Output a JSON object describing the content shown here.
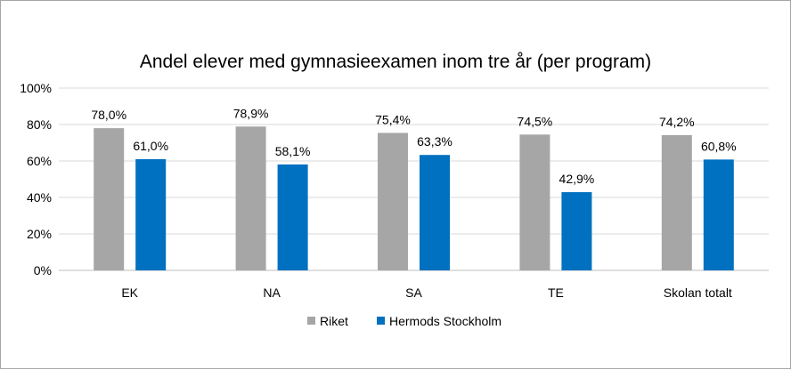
{
  "chart_data": {
    "type": "bar",
    "title": "Andel elever med gymnasieexamen inom tre år (per program)",
    "categories": [
      "EK",
      "NA",
      "SA",
      "TE",
      "Skolan totalt"
    ],
    "series": [
      {
        "name": "Riket",
        "color": "#a6a6a6",
        "values": [
          78.0,
          78.9,
          75.4,
          74.5,
          74.2
        ],
        "labels": [
          "78,0%",
          "78,9%",
          "75,4%",
          "74,5%",
          "74,2%"
        ]
      },
      {
        "name": "Hermods Stockholm",
        "color": "#0070c0",
        "values": [
          61.0,
          58.1,
          63.3,
          42.9,
          60.8
        ],
        "labels": [
          "61,0%",
          "58,1%",
          "63,3%",
          "42,9%",
          "60,8%"
        ]
      }
    ],
    "y_ticks": [
      "0%",
      "20%",
      "40%",
      "60%",
      "80%",
      "100%"
    ],
    "ylim": [
      0,
      100
    ],
    "grid": true,
    "legend": "bottom"
  }
}
